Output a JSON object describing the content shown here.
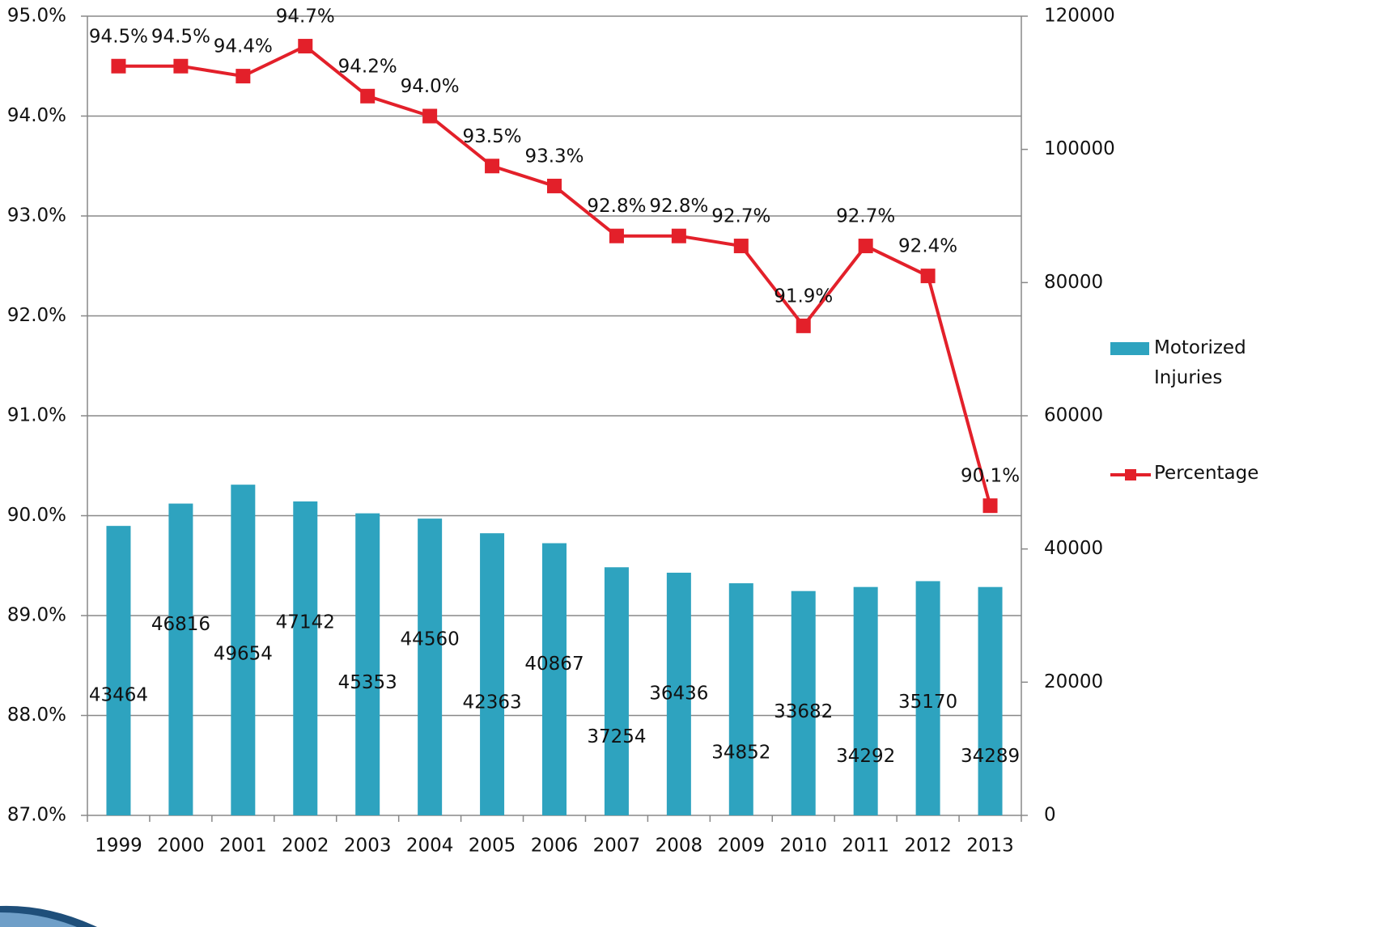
{
  "chart_data": {
    "type": "bar-line",
    "categories": [
      "1999",
      "2000",
      "2001",
      "2002",
      "2003",
      "2004",
      "2005",
      "2006",
      "2007",
      "2008",
      "2009",
      "2010",
      "2011",
      "2012",
      "2013"
    ],
    "series": [
      {
        "name": "Motorized Injuries",
        "type": "bar",
        "axis": "y2",
        "color": "#2ea3bf",
        "values": [
          43464,
          46816,
          49654,
          47142,
          45353,
          44560,
          42363,
          40867,
          37254,
          36436,
          34852,
          33682,
          34292,
          35170,
          34289
        ]
      },
      {
        "name": "Percentage",
        "type": "line",
        "axis": "y",
        "color": "#e3202a",
        "values": [
          94.5,
          94.5,
          94.4,
          94.7,
          94.2,
          94.0,
          93.5,
          93.3,
          92.8,
          92.8,
          92.7,
          91.9,
          92.7,
          92.4,
          90.1
        ],
        "value_labels": [
          "94.5%",
          "94.5%",
          "94.4%",
          "94.7%",
          "94.2%",
          "94.0%",
          "93.5%",
          "93.3%",
          "92.8%",
          "92.8%",
          "92.7%",
          "91.9%",
          "92.7%",
          "92.4%",
          "90.1%"
        ]
      }
    ],
    "ylim": [
      87,
      95
    ],
    "yticks": [
      {
        "value": 87,
        "label": "87.0%"
      },
      {
        "value": 88,
        "label": "88.0%"
      },
      {
        "value": 89,
        "label": "89.0%"
      },
      {
        "value": 90,
        "label": "90.0%"
      },
      {
        "value": 91,
        "label": "91.0%"
      },
      {
        "value": 92,
        "label": "92.0%"
      },
      {
        "value": 93,
        "label": "93.0%"
      },
      {
        "value": 94,
        "label": "94.0%"
      },
      {
        "value": 95,
        "label": "95.0%"
      }
    ],
    "y2lim": [
      0,
      120000
    ],
    "y2ticks": [
      0,
      20000,
      40000,
      60000,
      80000,
      100000,
      120000
    ],
    "grid": true,
    "legend": "right"
  }
}
